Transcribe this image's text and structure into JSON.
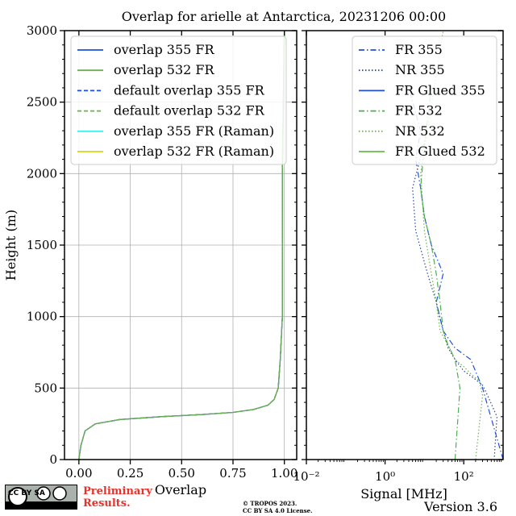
{
  "chart_data": [
    {
      "type": "line",
      "title": "Overlap for arielle at Antarctica, 20231206 00:00",
      "xlabel": "Overlap",
      "ylabel": "Height (m)",
      "xlim": [
        -0.07,
        1.06
      ],
      "ylim": [
        0,
        3000
      ],
      "xticks": [
        "0.00",
        "0.25",
        "0.50",
        "0.75",
        "1.00"
      ],
      "xtick_values": [
        0,
        0.25,
        0.5,
        0.75,
        1.0
      ],
      "yticks": [
        "0",
        "500",
        "1000",
        "1500",
        "2000",
        "2500",
        "3000"
      ],
      "ytick_values": [
        0,
        500,
        1000,
        1500,
        2000,
        2500,
        3000
      ],
      "grid": true,
      "legend_position": "top-right",
      "series": [
        {
          "name": "overlap 355 FR",
          "color": "#1f4fd8",
          "style": "solid",
          "x": [
            0.0,
            0.01,
            0.03,
            0.08,
            0.2,
            0.4,
            0.6,
            0.75,
            0.85,
            0.92,
            0.95,
            0.97,
            0.98,
            0.99,
            0.99,
            0.99,
            1.0
          ],
          "y": [
            0,
            100,
            200,
            250,
            280,
            300,
            315,
            330,
            350,
            380,
            420,
            500,
            700,
            1000,
            1500,
            2000,
            3000
          ]
        },
        {
          "name": "overlap 532 FR",
          "color": "#6ab04c",
          "style": "solid",
          "x": [
            0.0,
            0.01,
            0.03,
            0.08,
            0.2,
            0.4,
            0.6,
            0.75,
            0.85,
            0.92,
            0.95,
            0.97,
            0.98,
            0.99,
            0.99,
            0.99,
            1.0
          ],
          "y": [
            0,
            100,
            200,
            250,
            280,
            300,
            315,
            330,
            350,
            380,
            420,
            500,
            700,
            1000,
            1500,
            2000,
            3000
          ]
        },
        {
          "name": "default overlap 355 FR",
          "color": "#1f4fd8",
          "style": "dashed",
          "x": [
            0.0,
            0.01,
            0.03,
            0.08,
            0.2,
            0.4,
            0.6,
            0.75,
            0.85,
            0.92,
            0.95,
            0.97,
            0.98,
            0.99,
            0.99,
            0.99,
            1.0
          ],
          "y": [
            0,
            100,
            200,
            250,
            280,
            300,
            315,
            330,
            350,
            380,
            420,
            500,
            700,
            1000,
            1500,
            2000,
            3000
          ]
        },
        {
          "name": "default overlap 532 FR",
          "color": "#6ab04c",
          "style": "dashed",
          "x": [
            0.0,
            0.01,
            0.03,
            0.08,
            0.2,
            0.4,
            0.6,
            0.75,
            0.85,
            0.92,
            0.95,
            0.97,
            0.98,
            0.99,
            0.99,
            0.99,
            1.0
          ],
          "y": [
            0,
            100,
            200,
            250,
            280,
            300,
            315,
            330,
            350,
            380,
            420,
            500,
            700,
            1000,
            1500,
            2000,
            3000
          ]
        },
        {
          "name": "overlap 355 FR (Raman)",
          "color": "#3ff0ec",
          "style": "solid",
          "x": [],
          "y": []
        },
        {
          "name": "overlap 532 FR (Raman)",
          "color": "#d4d41c",
          "style": "solid",
          "x": [],
          "y": []
        }
      ]
    },
    {
      "type": "line",
      "xlabel": "Signal [MHz]",
      "xscale": "log",
      "xlim": [
        0.01,
        1000
      ],
      "ylim": [
        0,
        3000
      ],
      "xticks": [
        "10⁻²",
        "10⁰",
        "10²"
      ],
      "xtick_values": [
        0.01,
        1,
        100
      ],
      "grid": false,
      "legend_position": "top-right",
      "series": [
        {
          "name": "FR 355",
          "color": "#1f4fd8",
          "style": "dashdot",
          "x": [
            1000,
            300,
            150,
            60,
            30,
            20,
            30,
            15,
            10,
            8,
            6,
            8,
            4
          ],
          "y": [
            0,
            500,
            700,
            780,
            900,
            1100,
            1300,
            1500,
            1700,
            1900,
            2100,
            2300,
            2600
          ]
        },
        {
          "name": "NR 355",
          "color": "#2b46a8",
          "style": "dotted",
          "x": [
            600,
            700,
            400,
            300,
            200,
            100,
            60,
            40,
            30,
            20,
            12,
            6,
            5,
            12
          ],
          "y": [
            20,
            300,
            450,
            520,
            560,
            620,
            700,
            780,
            900,
            1100,
            1300,
            1600,
            1900,
            2300
          ]
        },
        {
          "name": "FR Glued 355",
          "color": "#1f4fd8",
          "style": "solid",
          "x": [],
          "y": []
        },
        {
          "name": "FR 532",
          "color": "#4caf50",
          "style": "dashdot",
          "x": [
            60,
            80,
            60,
            40,
            30,
            25,
            20,
            15,
            10,
            8,
            10,
            15
          ],
          "y": [
            0,
            500,
            700,
            800,
            900,
            1100,
            1300,
            1500,
            1700,
            1900,
            2200,
            2600
          ]
        },
        {
          "name": "NR 532",
          "color": "#66bb44",
          "style": "dotted",
          "x": [
            200,
            300,
            250,
            150,
            100,
            60,
            40,
            25,
            20,
            15,
            10,
            8,
            30
          ],
          "y": [
            0,
            450,
            550,
            600,
            650,
            700,
            800,
            900,
            1100,
            1300,
            1600,
            2000,
            3000
          ]
        },
        {
          "name": "FR Glued 532",
          "color": "#66bb44",
          "style": "solid",
          "x": [],
          "y": []
        }
      ]
    }
  ],
  "footer": {
    "cc_badge": "CC BY SA",
    "preliminary_line1": "Preliminary",
    "preliminary_line2": "Results.",
    "copyright_line1": "© TROPOS 2023.",
    "copyright_line2": "CC BY SA 4.0 License.",
    "version": "Version 3.6"
  }
}
